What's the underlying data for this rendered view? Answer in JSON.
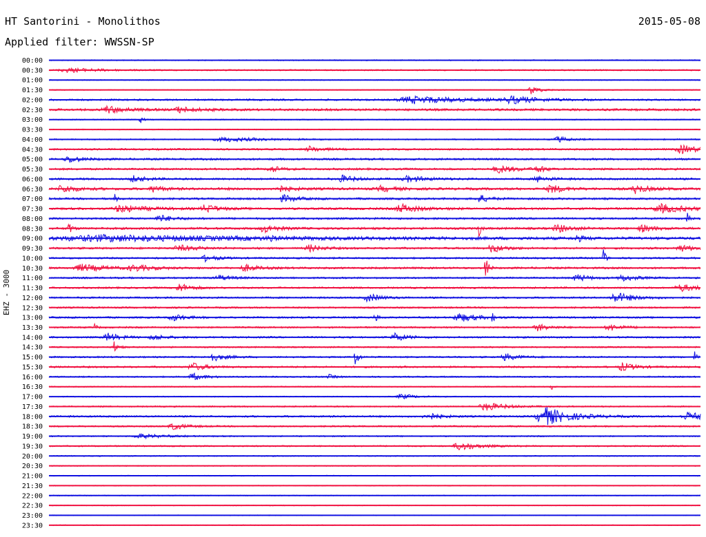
{
  "header": {
    "station": "HT Santorini - Monolithos",
    "filter_prefix": "Applied filter:",
    "filter_name": "WWSSN-SP",
    "date": "2015-05-08"
  },
  "chart_data": {
    "type": "line",
    "title": "HT Santorini - Monolithos",
    "date": "2015-05-08",
    "filter": "WWSSN-SP",
    "channel_label": "EHZ - 3000",
    "row_interval_minutes": 30,
    "row_labels": [
      "00:00",
      "00:30",
      "01:00",
      "01:30",
      "02:00",
      "02:30",
      "03:00",
      "03:30",
      "04:00",
      "04:30",
      "05:00",
      "05:30",
      "06:00",
      "06:30",
      "07:00",
      "07:30",
      "08:00",
      "08:30",
      "09:00",
      "09:30",
      "10:00",
      "10:30",
      "11:00",
      "11:30",
      "12:00",
      "12:30",
      "13:00",
      "13:30",
      "14:00",
      "14:30",
      "15:00",
      "15:30",
      "16:00",
      "16:30",
      "17:00",
      "17:30",
      "18:00",
      "18:30",
      "19:00",
      "19:30",
      "20:00",
      "20:30",
      "21:00",
      "21:30",
      "22:00",
      "22:30",
      "23:00",
      "23:30"
    ],
    "row_colors": [
      "#1010e0",
      "#f01040"
    ],
    "grid": false,
    "legend": "none",
    "row_noise": [
      1.0,
      1.2,
      0.8,
      0.8,
      1.6,
      2.0,
      1.0,
      0.9,
      1.2,
      1.6,
      1.8,
      1.8,
      1.8,
      2.2,
      1.8,
      2.0,
      1.8,
      2.0,
      2.4,
      1.8,
      1.6,
      1.8,
      1.6,
      1.6,
      1.6,
      1.5,
      1.6,
      1.5,
      1.6,
      1.3,
      1.5,
      1.6,
      1.3,
      1.0,
      1.0,
      1.3,
      1.6,
      1.4,
      1.2,
      1.3,
      1.0,
      0.9,
      0.9,
      0.8,
      0.8,
      0.8,
      0.8,
      0.8
    ],
    "events": [
      {
        "row": 1,
        "t": 0.03,
        "amp": 3,
        "dur": 0.05
      },
      {
        "row": 3,
        "t": 0.74,
        "amp": 6,
        "dur": 0.015
      },
      {
        "row": 4,
        "t": 0.56,
        "amp": 5,
        "dur": 0.08
      },
      {
        "row": 4,
        "t": 0.71,
        "amp": 5,
        "dur": 0.04
      },
      {
        "row": 5,
        "t": 0.09,
        "amp": 5,
        "dur": 0.03
      },
      {
        "row": 5,
        "t": 0.2,
        "amp": 4,
        "dur": 0.03
      },
      {
        "row": 6,
        "t": 0.14,
        "amp": 6,
        "dur": 0.004
      },
      {
        "row": 8,
        "t": 0.27,
        "amp": 3,
        "dur": 0.06
      },
      {
        "row": 8,
        "t": 0.78,
        "amp": 4,
        "dur": 0.02
      },
      {
        "row": 9,
        "t": 0.4,
        "amp": 4,
        "dur": 0.02
      },
      {
        "row": 9,
        "t": 0.97,
        "amp": 6,
        "dur": 0.03
      },
      {
        "row": 10,
        "t": 0.03,
        "amp": 5,
        "dur": 0.02
      },
      {
        "row": 11,
        "t": 0.34,
        "amp": 5,
        "dur": 0.015
      },
      {
        "row": 11,
        "t": 0.69,
        "amp": 5,
        "dur": 0.03
      },
      {
        "row": 11,
        "t": 0.75,
        "amp": 6,
        "dur": 0.01
      },
      {
        "row": 12,
        "t": 0.13,
        "amp": 4,
        "dur": 0.02
      },
      {
        "row": 12,
        "t": 0.45,
        "amp": 5,
        "dur": 0.02
      },
      {
        "row": 12,
        "t": 0.55,
        "amp": 4,
        "dur": 0.03
      },
      {
        "row": 12,
        "t": 0.75,
        "amp": 4,
        "dur": 0.02
      },
      {
        "row": 13,
        "t": 0.02,
        "amp": 6,
        "dur": 0.02
      },
      {
        "row": 13,
        "t": 0.16,
        "amp": 5,
        "dur": 0.015
      },
      {
        "row": 13,
        "t": 0.35,
        "amp": 5,
        "dur": 0.02
      },
      {
        "row": 13,
        "t": 0.51,
        "amp": 4,
        "dur": 0.02
      },
      {
        "row": 13,
        "t": 0.77,
        "amp": 6,
        "dur": 0.02
      },
      {
        "row": 13,
        "t": 0.9,
        "amp": 6,
        "dur": 0.02
      },
      {
        "row": 14,
        "t": 0.1,
        "amp": 10,
        "dur": 0.003
      },
      {
        "row": 14,
        "t": 0.36,
        "amp": 5,
        "dur": 0.02
      },
      {
        "row": 14,
        "t": 0.66,
        "amp": 6,
        "dur": 0.015
      },
      {
        "row": 15,
        "t": 0.11,
        "amp": 5,
        "dur": 0.04
      },
      {
        "row": 15,
        "t": 0.24,
        "amp": 6,
        "dur": 0.02
      },
      {
        "row": 15,
        "t": 0.54,
        "amp": 6,
        "dur": 0.03
      },
      {
        "row": 15,
        "t": 0.94,
        "amp": 6,
        "dur": 0.04
      },
      {
        "row": 16,
        "t": 0.17,
        "amp": 5,
        "dur": 0.02
      },
      {
        "row": 16,
        "t": 0.98,
        "amp": 10,
        "dur": 0.004
      },
      {
        "row": 17,
        "t": 0.03,
        "amp": 10,
        "dur": 0.005
      },
      {
        "row": 17,
        "t": 0.33,
        "amp": 6,
        "dur": 0.02
      },
      {
        "row": 17,
        "t": 0.66,
        "amp": 14,
        "dur": 0.003
      },
      {
        "row": 17,
        "t": 0.78,
        "amp": 6,
        "dur": 0.02
      },
      {
        "row": 17,
        "t": 0.91,
        "amp": 5,
        "dur": 0.02
      },
      {
        "row": 18,
        "t": 0.08,
        "amp": 4,
        "dur": 0.25
      },
      {
        "row": 18,
        "t": 0.34,
        "amp": 8,
        "dur": 0.003
      },
      {
        "row": 18,
        "t": 0.81,
        "amp": 5,
        "dur": 0.01
      },
      {
        "row": 19,
        "t": 0.2,
        "amp": 4,
        "dur": 0.03
      },
      {
        "row": 19,
        "t": 0.4,
        "amp": 5,
        "dur": 0.02
      },
      {
        "row": 19,
        "t": 0.68,
        "amp": 6,
        "dur": 0.02
      },
      {
        "row": 19,
        "t": 0.97,
        "amp": 5,
        "dur": 0.02
      },
      {
        "row": 20,
        "t": 0.24,
        "amp": 4,
        "dur": 0.02
      },
      {
        "row": 20,
        "t": 0.85,
        "amp": 26,
        "dur": 0.003
      },
      {
        "row": 21,
        "t": 0.05,
        "amp": 5,
        "dur": 0.04
      },
      {
        "row": 21,
        "t": 0.13,
        "amp": 4,
        "dur": 0.03
      },
      {
        "row": 21,
        "t": 0.3,
        "amp": 5,
        "dur": 0.02
      },
      {
        "row": 21,
        "t": 0.67,
        "amp": 24,
        "dur": 0.004
      },
      {
        "row": 22,
        "t": 0.26,
        "amp": 4,
        "dur": 0.02
      },
      {
        "row": 22,
        "t": 0.81,
        "amp": 5,
        "dur": 0.02
      },
      {
        "row": 22,
        "t": 0.88,
        "amp": 5,
        "dur": 0.02
      },
      {
        "row": 23,
        "t": 0.2,
        "amp": 6,
        "dur": 0.02
      },
      {
        "row": 23,
        "t": 0.97,
        "amp": 5,
        "dur": 0.03
      },
      {
        "row": 24,
        "t": 0.49,
        "amp": 6,
        "dur": 0.02
      },
      {
        "row": 24,
        "t": 0.87,
        "amp": 7,
        "dur": 0.03
      },
      {
        "row": 26,
        "t": 0.19,
        "amp": 5,
        "dur": 0.02
      },
      {
        "row": 26,
        "t": 0.5,
        "amp": 6,
        "dur": 0.006
      },
      {
        "row": 26,
        "t": 0.63,
        "amp": 6,
        "dur": 0.03
      },
      {
        "row": 26,
        "t": 0.68,
        "amp": 8,
        "dur": 0.003
      },
      {
        "row": 27,
        "t": 0.07,
        "amp": 6,
        "dur": 0.003
      },
      {
        "row": 27,
        "t": 0.75,
        "amp": 5,
        "dur": 0.02
      },
      {
        "row": 27,
        "t": 0.86,
        "amp": 5,
        "dur": 0.02
      },
      {
        "row": 28,
        "t": 0.09,
        "amp": 6,
        "dur": 0.02
      },
      {
        "row": 28,
        "t": 0.16,
        "amp": 4,
        "dur": 0.02
      },
      {
        "row": 28,
        "t": 0.53,
        "amp": 6,
        "dur": 0.02
      },
      {
        "row": 29,
        "t": 0.1,
        "amp": 8,
        "dur": 0.006
      },
      {
        "row": 30,
        "t": 0.25,
        "amp": 6,
        "dur": 0.02
      },
      {
        "row": 30,
        "t": 0.47,
        "amp": 14,
        "dur": 0.005
      },
      {
        "row": 30,
        "t": 0.7,
        "amp": 5,
        "dur": 0.02
      },
      {
        "row": 30,
        "t": 0.99,
        "amp": 12,
        "dur": 0.003
      },
      {
        "row": 31,
        "t": 0.22,
        "amp": 6,
        "dur": 0.02
      },
      {
        "row": 31,
        "t": 0.88,
        "amp": 6,
        "dur": 0.02
      },
      {
        "row": 32,
        "t": 0.22,
        "amp": 5,
        "dur": 0.02
      },
      {
        "row": 32,
        "t": 0.43,
        "amp": 3,
        "dur": 0.01
      },
      {
        "row": 33,
        "t": 0.77,
        "amp": 8,
        "dur": 0.003
      },
      {
        "row": 34,
        "t": 0.54,
        "amp": 4,
        "dur": 0.02
      },
      {
        "row": 35,
        "t": 0.67,
        "amp": 6,
        "dur": 0.03
      },
      {
        "row": 36,
        "t": 0.58,
        "amp": 6,
        "dur": 0.02
      },
      {
        "row": 36,
        "t": 0.76,
        "amp": 14,
        "dur": 0.04
      },
      {
        "row": 36,
        "t": 0.98,
        "amp": 6,
        "dur": 0.03
      },
      {
        "row": 37,
        "t": 0.19,
        "amp": 5,
        "dur": 0.02
      },
      {
        "row": 38,
        "t": 0.14,
        "amp": 3,
        "dur": 0.04
      },
      {
        "row": 39,
        "t": 0.63,
        "amp": 6,
        "dur": 0.03
      }
    ]
  }
}
